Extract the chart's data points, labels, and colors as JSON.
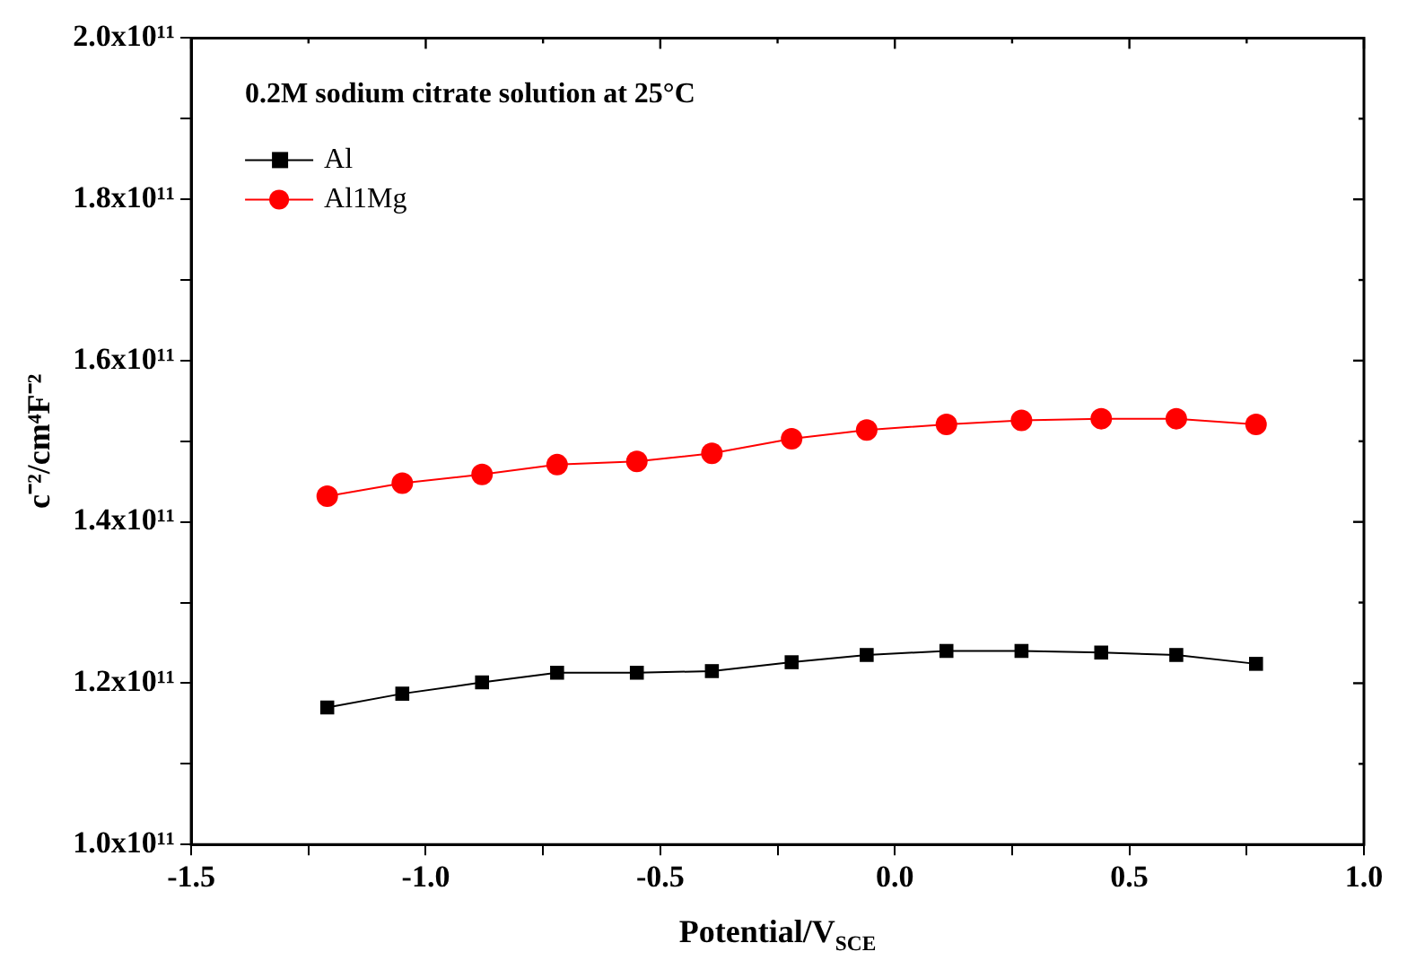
{
  "chart_data": {
    "type": "line",
    "xlabel": "Potential/V$_{SCE}$",
    "ylabel": "c⁻²/cm⁴F⁻²",
    "annotations": [
      "0.2M sodium citrate solution at 25°C"
    ],
    "x": [
      -1.21,
      -1.05,
      -0.88,
      -0.72,
      -0.55,
      -0.39,
      -0.22,
      -0.06,
      0.11,
      0.27,
      0.44,
      0.6,
      0.77
    ],
    "series": [
      {
        "name": "Al",
        "color": "#000000",
        "marker": "square",
        "values": [
          117000000000.0,
          118700000000.0,
          120100000000.0,
          121300000000.0,
          121300000000.0,
          121500000000.0,
          122600000000.0,
          123500000000.0,
          124000000000.0,
          124000000000.0,
          123800000000.0,
          123500000000.0,
          122400000000.0
        ]
      },
      {
        "name": "Al1Mg",
        "color": "#ff0000",
        "marker": "circle",
        "values": [
          143200000000.0,
          144800000000.0,
          145900000000.0,
          147100000000.0,
          147500000000.0,
          148500000000.0,
          150300000000.0,
          151400000000.0,
          152100000000.0,
          152600000000.0,
          152800000000.0,
          152800000000.0,
          152100000000.0
        ]
      }
    ],
    "xlim": [
      -1.5,
      1.0
    ],
    "xticks": [
      -1.5,
      {
        "value": -1.25,
        "label": null
      },
      {
        "value": -1,
        "label": "-1.0"
      },
      {
        "value": -0.75,
        "label": null
      },
      -0.5,
      {
        "value": -0.25,
        "label": null
      },
      {
        "value": 0,
        "label": "0.0"
      },
      {
        "value": 0.25,
        "label": null
      },
      0.5,
      {
        "value": 0.75,
        "label": null
      },
      {
        "value": 1,
        "label": "1.0"
      }
    ],
    "ylim": [
      100000000000.0,
      200000000000.0
    ],
    "yticks": [
      {
        "value": 100000000000.0,
        "label": "1.0x10¹¹"
      },
      {
        "value": 110000000000.0,
        "label": null
      },
      {
        "value": 120000000000.0,
        "label": "1.2x10¹¹"
      },
      {
        "value": 130000000000.0,
        "label": null
      },
      {
        "value": 140000000000.0,
        "label": "1.4x10¹¹"
      },
      {
        "value": 150000000000.0,
        "label": null
      },
      {
        "value": 160000000000.0,
        "label": "1.6x10¹¹"
      },
      {
        "value": 170000000000.0,
        "label": null
      },
      {
        "value": 180000000000.0,
        "label": "1.8x10¹¹"
      },
      {
        "value": 190000000000.0,
        "label": null
      },
      {
        "value": 200000000000.0,
        "label": "2.0x10¹¹"
      }
    ],
    "grid": false,
    "legend": "top left",
    "line_style": "solid"
  }
}
